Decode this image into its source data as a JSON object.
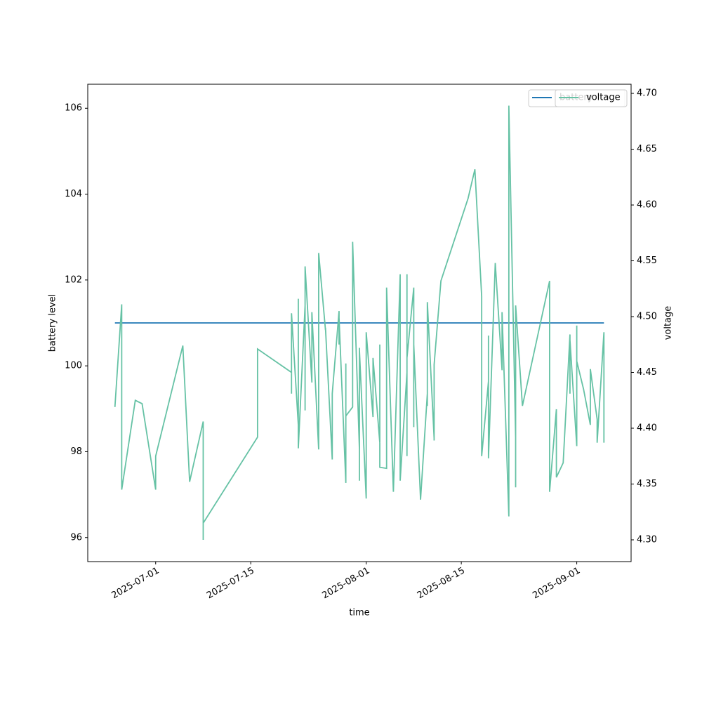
{
  "chart_data": {
    "type": "line",
    "x_label": "time",
    "y_label": "battery level",
    "y2_label": "voltage",
    "x": [
      "2025-06-25",
      "2025-06-26",
      "2025-06-26",
      "2025-06-28",
      "2025-06-29",
      "2025-07-01",
      "2025-07-01",
      "2025-07-05",
      "2025-07-06",
      "2025-07-08",
      "2025-07-08",
      "2025-07-08",
      "2025-07-16",
      "2025-07-16",
      "2025-07-21",
      "2025-07-21",
      "2025-07-21",
      "2025-07-21",
      "2025-07-22",
      "2025-07-22",
      "2025-07-22",
      "2025-07-23",
      "2025-07-23",
      "2025-07-23",
      "2025-07-24",
      "2025-07-24",
      "2025-07-25",
      "2025-07-25",
      "2025-07-25",
      "2025-07-26",
      "2025-07-26",
      "2025-07-27",
      "2025-07-27",
      "2025-07-28",
      "2025-07-28",
      "2025-07-28",
      "2025-07-29",
      "2025-07-29",
      "2025-07-29",
      "2025-07-30",
      "2025-07-30",
      "2025-07-31",
      "2025-07-31",
      "2025-07-31",
      "2025-07-31",
      "2025-08-01",
      "2025-08-01",
      "2025-08-02",
      "2025-08-02",
      "2025-08-02",
      "2025-08-03",
      "2025-08-03",
      "2025-08-03",
      "2025-08-04",
      "2025-08-04",
      "2025-08-05",
      "2025-08-06",
      "2025-08-06",
      "2025-08-06",
      "2025-08-06",
      "2025-08-07",
      "2025-08-07",
      "2025-08-07",
      "2025-08-07",
      "2025-08-08",
      "2025-08-08",
      "2025-08-08",
      "2025-08-09",
      "2025-08-10",
      "2025-08-10",
      "2025-08-10",
      "2025-08-11",
      "2025-08-11",
      "2025-08-11",
      "2025-08-12",
      "2025-08-16",
      "2025-08-17",
      "2025-08-18",
      "2025-08-18",
      "2025-08-19",
      "2025-08-19",
      "2025-08-19",
      "2025-08-19",
      "2025-08-20",
      "2025-08-21",
      "2025-08-21",
      "2025-08-22",
      "2025-08-22",
      "2025-08-23",
      "2025-08-23",
      "2025-08-23",
      "2025-08-24",
      "2025-08-28",
      "2025-08-28",
      "2025-08-29",
      "2025-08-29",
      "2025-08-30",
      "2025-08-31",
      "2025-08-31",
      "2025-08-31",
      "2025-08-31",
      "2025-09-01",
      "2025-09-01",
      "2025-09-01",
      "2025-09-02",
      "2025-09-03",
      "2025-09-03",
      "2025-09-04",
      "2025-09-04",
      "2025-09-05",
      "2025-09-05",
      "2025-09-05"
    ],
    "series": [
      {
        "name": "battery",
        "color": "#1f77b4",
        "values": [
          101,
          101,
          101,
          101,
          101,
          101,
          101,
          101,
          101,
          101,
          101,
          101,
          101,
          101,
          101,
          101,
          101,
          101,
          101,
          101,
          101,
          101,
          101,
          101,
          101,
          101,
          101,
          101,
          101,
          101,
          101,
          101,
          101,
          101,
          101,
          101,
          101,
          101,
          101,
          101,
          101,
          101,
          101,
          101,
          101,
          101,
          101,
          101,
          101,
          101,
          101,
          101,
          101,
          101,
          101,
          101,
          101,
          101,
          101,
          101,
          101,
          101,
          101,
          101,
          101,
          101,
          101,
          101,
          101,
          101,
          101,
          101,
          101,
          101,
          101,
          101,
          101,
          101,
          101,
          101,
          101,
          101,
          101,
          101,
          101,
          101,
          101,
          101,
          101,
          101,
          101,
          101,
          101,
          101,
          101,
          101,
          101,
          101,
          101,
          101,
          101,
          101,
          101,
          101,
          101,
          101,
          101,
          101,
          101,
          101,
          101,
          101
        ]
      },
      {
        "name": "voltage",
        "color": "#66c2a5",
        "axis": "y2",
        "values": [
          4.419,
          4.511,
          4.345,
          4.425,
          4.422,
          4.345,
          4.375,
          4.474,
          4.352,
          4.406,
          4.3,
          4.315,
          4.392,
          4.471,
          4.45,
          4.46,
          4.431,
          4.503,
          4.403,
          4.516,
          4.382,
          4.51,
          4.416,
          4.545,
          4.441,
          4.504,
          4.381,
          4.392,
          4.557,
          4.488,
          4.49,
          4.372,
          4.431,
          4.505,
          4.475,
          4.499,
          4.351,
          4.458,
          4.411,
          4.419,
          4.567,
          4.381,
          4.353,
          4.472,
          4.47,
          4.337,
          4.486,
          4.41,
          4.443,
          4.463,
          4.387,
          4.475,
          4.365,
          4.364,
          4.526,
          4.343,
          4.538,
          4.428,
          4.449,
          4.353,
          4.45,
          4.375,
          4.538,
          4.463,
          4.526,
          4.401,
          4.475,
          4.336,
          4.431,
          4.42,
          4.513,
          4.391,
          4.389,
          4.457,
          4.532,
          4.606,
          4.632,
          4.518,
          4.375,
          4.442,
          4.406,
          4.483,
          4.373,
          4.548,
          4.452,
          4.504,
          4.321,
          4.689,
          4.392,
          4.347,
          4.51,
          4.42,
          4.532,
          4.343,
          4.417,
          4.356,
          4.369,
          4.484,
          4.431,
          4.469,
          4.479,
          4.384,
          4.492,
          4.46,
          4.435,
          4.403,
          4.453,
          4.408,
          4.387,
          4.486,
          4.413,
          4.387
        ]
      }
    ],
    "xlim": [
      "2025-06-21",
      "2025-09-09"
    ],
    "xticks": [
      "2025-07-01",
      "2025-07-15",
      "2025-08-01",
      "2025-08-15",
      "2025-09-01"
    ],
    "ylim": [
      95.44,
      106.56
    ],
    "yticks": [
      96,
      98,
      100,
      102,
      104,
      106
    ],
    "y2lim": [
      4.2805,
      4.7082
    ],
    "y2ticks": [
      {
        "value": 4.3,
        "label": "4.30"
      },
      4.35,
      {
        "value": 4.4,
        "label": "4.40"
      },
      4.45,
      {
        "value": 4.5,
        "label": "4.50"
      },
      4.55,
      {
        "value": 4.6,
        "label": "4.60"
      },
      4.65,
      {
        "value": 4.7,
        "label": "4.70"
      }
    ],
    "grid": false,
    "legend": "upper right"
  }
}
